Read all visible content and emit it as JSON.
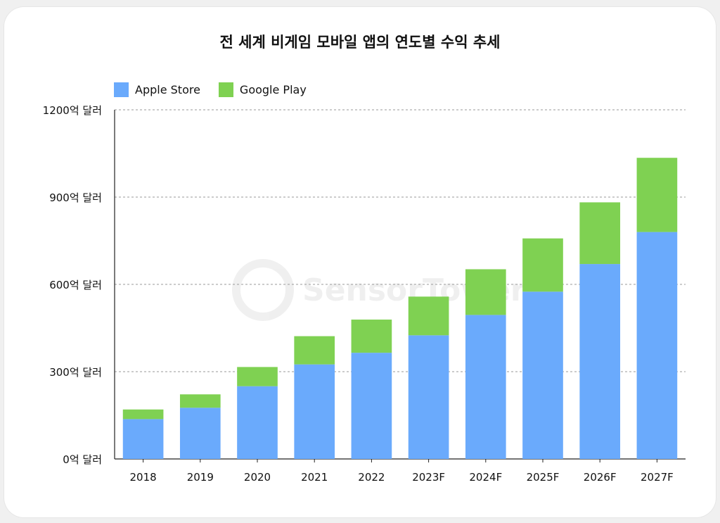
{
  "chart_data": {
    "type": "bar",
    "stacked": true,
    "title": "전 세계 비게임 모바일 앱의 연도별 수익 추세",
    "categories": [
      "2018",
      "2019",
      "2020",
      "2021",
      "2022",
      "2023F",
      "2024F",
      "2025F",
      "2026F",
      "2027F"
    ],
    "series": [
      {
        "name": "Apple Store",
        "color": "#6aaafc",
        "values": [
          137,
          176,
          250,
          325,
          365,
          425,
          495,
          575,
          670,
          780
        ]
      },
      {
        "name": "Google Play",
        "color": "#7fd152",
        "values": [
          33,
          46,
          66,
          97,
          114,
          133,
          157,
          183,
          212,
          255
        ]
      }
    ],
    "ylim": [
      0,
      1200
    ],
    "yticks": [
      0,
      300,
      600,
      900,
      1200
    ],
    "ytick_labels": [
      "0억 달러",
      "300억 달러",
      "600억 달러",
      "900억 달러",
      "1200억 달러"
    ],
    "grid": true,
    "legend_position": "top-left"
  },
  "watermark": "SensorTower"
}
